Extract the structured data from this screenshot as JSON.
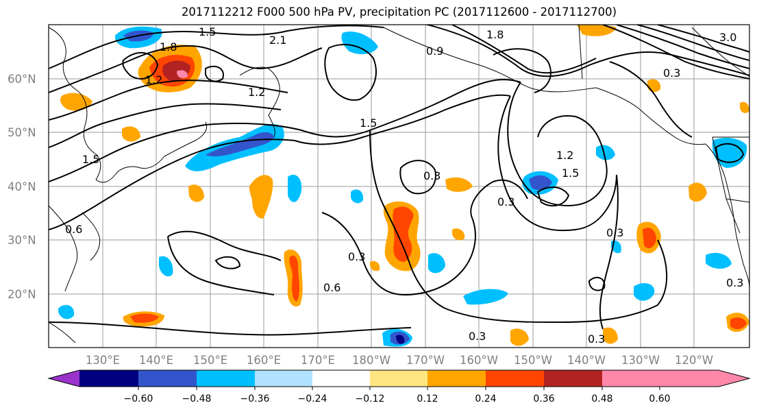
{
  "title": "2017112212 F000 500 hPa PV, precipitation PC (2017112600 - 2017112700)",
  "lat_ticks": [
    "60°N",
    "50°N",
    "40°N",
    "30°N",
    "20°N"
  ],
  "lon_ticks": [
    "130°E",
    "140°E",
    "150°E",
    "160°E",
    "170°E",
    "180°W",
    "170°W",
    "160°W",
    "150°W",
    "140°W",
    "130°W",
    "120°W"
  ],
  "colorbar": {
    "colors": [
      "#9933cc",
      "#000080",
      "#3355cc",
      "#00bfff",
      "#b0e2ff",
      "#ffffff",
      "#ffe680",
      "#ffa500",
      "#ff4500",
      "#b22222",
      "#ff88aa"
    ],
    "tick_labels": [
      "−0.60",
      "−0.48",
      "−0.36",
      "−0.24",
      "−0.12",
      "0.12",
      "0.24",
      "0.36",
      "0.48",
      "0.60"
    ]
  },
  "contour_labels": [
    "1.5",
    "1.8",
    "2.1",
    "1.2",
    "0.6",
    "0.3",
    "1.2",
    "1.5",
    "0.3",
    "0.6",
    "0.3",
    "0.3",
    "0.3",
    "0.3",
    "0.3",
    "1.8",
    "1.5",
    "1.2",
    "0.9",
    "0.3",
    "3.0",
    "1.5"
  ]
}
